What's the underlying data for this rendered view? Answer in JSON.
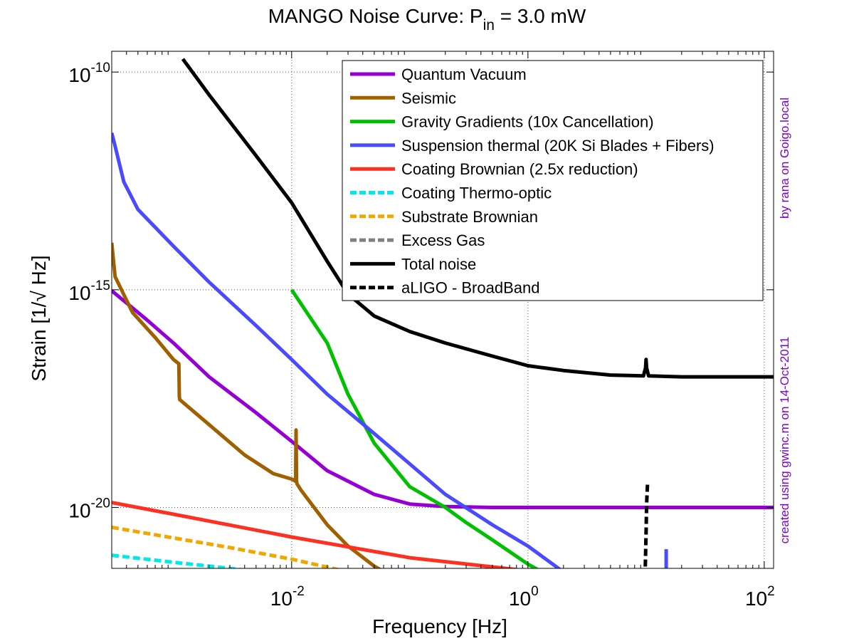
{
  "chart_data": {
    "type": "line",
    "title": {
      "main": "MANGO Noise Curve: P",
      "sub": "in",
      "rest": " = 3.0 mW"
    },
    "xlabel": "Frequency [Hz]",
    "ylabel": {
      "pre": "Strain [1/",
      "radical": "√",
      "post": " Hz]"
    },
    "x_scale": "log",
    "y_scale": "log",
    "xlim": [
      0.0003,
      120
    ],
    "ylim": [
      4e-22,
      3e-10
    ],
    "xticks": [
      {
        "value": 0.01,
        "base": "10",
        "exp": "-2"
      },
      {
        "value": 1,
        "base": "10",
        "exp": "0"
      },
      {
        "value": 100,
        "base": "10",
        "exp": "2"
      }
    ],
    "yticks": [
      {
        "value": 1e-10,
        "base": "10",
        "exp": "-10"
      },
      {
        "value": 1e-15,
        "base": "10",
        "exp": "-15"
      },
      {
        "value": 1e-20,
        "base": "10",
        "exp": "-20"
      }
    ],
    "grid": true,
    "legend_position": "top-right",
    "annotations": [
      "by rana on Goigo.local",
      "created using gwinc.m on 14-Oct-2011"
    ],
    "series": [
      {
        "name": "Quantum Vacuum",
        "color": "#9400d3",
        "dash": false,
        "x": [
          0.0003,
          0.0006,
          0.001,
          0.002,
          0.005,
          0.01,
          0.02,
          0.05,
          0.1,
          0.2,
          0.5,
          1,
          2,
          5,
          10,
          30,
          120
        ],
        "y": [
          9.5e-16,
          2e-16,
          6e-17,
          1e-17,
          1.5e-18,
          3.3e-19,
          7e-20,
          2e-20,
          1.2e-20,
          1.05e-20,
          1e-20,
          1e-20,
          1e-20,
          1e-20,
          1e-20,
          1e-20,
          1e-20
        ]
      },
      {
        "name": "Seismic",
        "color": "#a06000",
        "dash": false,
        "x": [
          0.0003,
          0.00032,
          0.00045,
          0.0007,
          0.001,
          0.00111,
          0.00112,
          0.00113,
          0.002,
          0.004,
          0.007,
          0.01,
          0.0108,
          0.0109,
          0.011,
          0.0111,
          0.012,
          0.02,
          0.03,
          0.05,
          0.065
        ],
        "y": [
          1.2e-14,
          2e-15,
          3e-16,
          8e-17,
          2.5e-17,
          2e-17,
          3.5e-18,
          3e-18,
          8e-19,
          1.6e-19,
          6e-20,
          4.5e-20,
          4e-20,
          6e-19,
          4e-20,
          3.5e-20,
          2.5e-20,
          4e-21,
          1.3e-21,
          4.5e-22,
          3e-22
        ]
      },
      {
        "name": "Gravity Gradients (10x Cancellation)",
        "color": "#00c000",
        "dash": false,
        "x": [
          0.01,
          0.02,
          0.03,
          0.05,
          0.1,
          0.2,
          0.3,
          0.5,
          1,
          1.4
        ],
        "y": [
          1e-15,
          6e-17,
          4e-18,
          3e-19,
          3e-20,
          1e-20,
          4.5e-21,
          1.8e-21,
          5e-22,
          3e-22
        ]
      },
      {
        "name": "Suspension thermal (20K Si Blades + Fibers)",
        "color": "#4a4aff",
        "dash": false,
        "x": [
          0.0003,
          0.00032,
          0.00038,
          0.0005,
          0.001,
          0.002,
          0.005,
          0.01,
          0.02,
          0.05,
          0.1,
          0.2,
          0.5,
          1,
          2.3
        ],
        "y": [
          4e-12,
          2e-12,
          3e-13,
          7e-14,
          1e-14,
          1.5e-15,
          1.5e-16,
          2.5e-17,
          4e-18,
          5e-19,
          1e-19,
          2e-20,
          4e-21,
          1.3e-21,
          2.5e-22
        ]
      },
      {
        "name": "Suspension thermal (20K Si Blades + Fibers)",
        "color": "#4a4aff",
        "dash": false,
        "legend": false,
        "x": [
          14.8,
          14.8
        ],
        "y": [
          2.5e-22,
          1.1e-21
        ]
      },
      {
        "name": "Coating Brownian (2.5x reduction)",
        "color": "#ff3020",
        "dash": false,
        "x": [
          0.0003,
          0.001,
          0.01,
          0.1,
          1,
          1.5
        ],
        "y": [
          1.3e-20,
          7e-21,
          2.1e-21,
          7e-22,
          3.5e-22,
          2.5e-22
        ]
      },
      {
        "name": "Coating Thermo-optic",
        "color": "#00e8e8",
        "dash": true,
        "x": [
          0.0003,
          0.001,
          0.003,
          0.01
        ],
        "y": [
          8e-22,
          5.5e-22,
          4e-22,
          2.7e-22
        ]
      },
      {
        "name": "Substrate Brownian",
        "color": "#f0a800",
        "dash": true,
        "x": [
          0.0003,
          0.001,
          0.003,
          0.01,
          0.04
        ],
        "y": [
          3.5e-21,
          2e-21,
          1.2e-21,
          6.5e-22,
          2.8e-22
        ]
      },
      {
        "name": "Excess Gas",
        "color": "#808080",
        "dash": true,
        "x": [],
        "y": []
      },
      {
        "name": "Total noise",
        "color": "#000000",
        "dash": false,
        "x": [
          0.0012,
          0.002,
          0.005,
          0.01,
          0.02,
          0.03,
          0.05,
          0.1,
          0.2,
          0.5,
          1,
          2,
          5,
          9.5,
          9.9,
          10,
          10.1,
          10.5,
          20,
          50,
          120
        ],
        "y": [
          2e-10,
          3e-11,
          1.2e-12,
          1e-13,
          4.5e-15,
          8e-16,
          2.5e-16,
          1.1e-16,
          6e-17,
          3e-17,
          1.8e-17,
          1.4e-17,
          1.1e-17,
          1.05e-17,
          1.6e-17,
          2.5e-17,
          1.6e-17,
          1.05e-17,
          1e-17,
          1e-17,
          1e-17
        ]
      },
      {
        "name": "aLIGO - BroadBand",
        "color": "#000000",
        "dash": true,
        "x": [
          9.8,
          9.9,
          10,
          10.1,
          10.3
        ],
        "y": [
          2.5e-22,
          8e-22,
          2.5e-21,
          1.2e-20,
          4e-20
        ]
      }
    ]
  }
}
